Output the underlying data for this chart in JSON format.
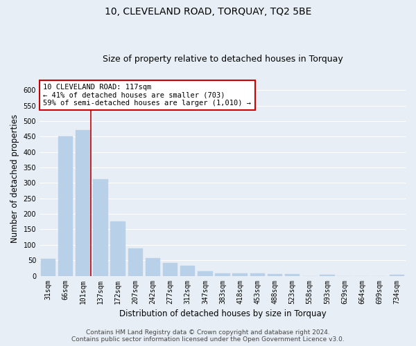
{
  "title": "10, CLEVELAND ROAD, TORQUAY, TQ2 5BE",
  "subtitle": "Size of property relative to detached houses in Torquay",
  "xlabel": "Distribution of detached houses by size in Torquay",
  "ylabel": "Number of detached properties",
  "categories": [
    "31sqm",
    "66sqm",
    "101sqm",
    "137sqm",
    "172sqm",
    "207sqm",
    "242sqm",
    "277sqm",
    "312sqm",
    "347sqm",
    "383sqm",
    "418sqm",
    "453sqm",
    "488sqm",
    "523sqm",
    "558sqm",
    "593sqm",
    "629sqm",
    "664sqm",
    "699sqm",
    "734sqm"
  ],
  "values": [
    55,
    450,
    470,
    311,
    176,
    88,
    58,
    42,
    32,
    15,
    8,
    8,
    8,
    5,
    5,
    0,
    3,
    0,
    0,
    0,
    4
  ],
  "bar_color": "#b8d0e8",
  "red_line_index": 2,
  "annotation_text_line1": "10 CLEVELAND ROAD: 117sqm",
  "annotation_text_line2": "← 41% of detached houses are smaller (703)",
  "annotation_text_line3": "59% of semi-detached houses are larger (1,010) →",
  "ylim": [
    0,
    630
  ],
  "yticks": [
    0,
    50,
    100,
    150,
    200,
    250,
    300,
    350,
    400,
    450,
    500,
    550,
    600
  ],
  "footer_line1": "Contains HM Land Registry data © Crown copyright and database right 2024.",
  "footer_line2": "Contains public sector information licensed under the Open Government Licence v3.0.",
  "bg_color": "#e8eef5",
  "plot_bg_color": "#e8eef5",
  "grid_color": "#ffffff",
  "annotation_box_facecolor": "#ffffff",
  "annotation_box_edgecolor": "#cc0000",
  "title_fontsize": 10,
  "subtitle_fontsize": 9,
  "axis_label_fontsize": 8.5,
  "tick_fontsize": 7,
  "annotation_fontsize": 7.5,
  "footer_fontsize": 6.5
}
